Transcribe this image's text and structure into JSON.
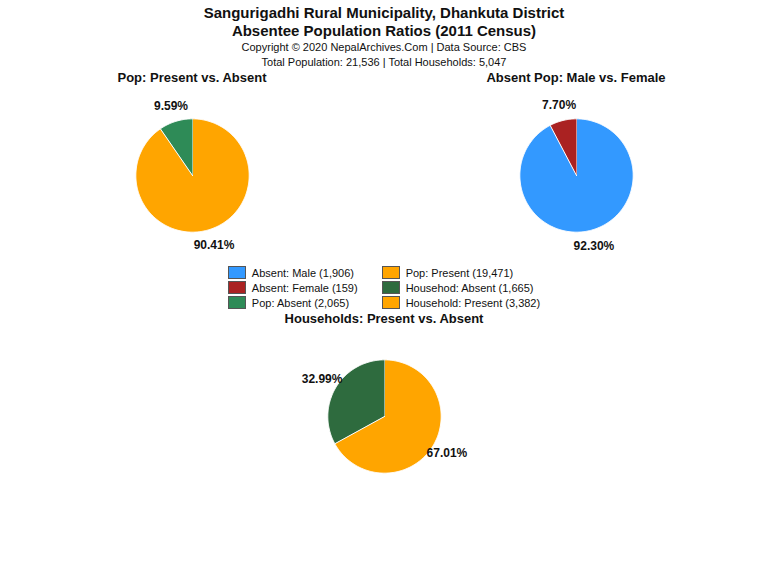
{
  "title": "Sangurigadhi Rural Municipality, Dhankuta District",
  "subtitle": "Absentee Population Ratios (2011 Census)",
  "annotations": [
    "Copyright © 2020 NepalArchives.Com | Data Source: CBS",
    "Total Population: 21,536 | Total Households: 5,047"
  ],
  "series": [
    {
      "name": "Absent: Male (1,906)",
      "color": "#3399FF"
    },
    {
      "name": "Absent: Female (159)",
      "color": "#AA2222"
    },
    {
      "name": "Pop: Absent (2,065)",
      "color": "#2E8B57"
    },
    {
      "name": "Pop: Present (19,471)",
      "color": "#FFA500"
    },
    {
      "name": "Househod: Absent (1,665)",
      "color": "#2E6B3E"
    },
    {
      "name": "Household: Present (3,382)",
      "color": "#FFA500"
    }
  ],
  "chart_data": [
    {
      "type": "pie",
      "title": "Pop: Present vs. Absent",
      "values": [
        90.41,
        9.59
      ],
      "value_labels": [
        "90.41%",
        "9.59%"
      ],
      "colors": [
        "#FFA500",
        "#2E8B57"
      ],
      "data_labels": true
    },
    {
      "type": "pie",
      "title": "Absent Pop: Male vs. Female",
      "values": [
        92.3,
        7.7
      ],
      "value_labels": [
        "92.30%",
        "7.70%"
      ],
      "colors": [
        "#3399FF",
        "#AA2222"
      ],
      "data_labels": true
    },
    {
      "type": "pie",
      "title": "Households: Present vs. Absent",
      "values": [
        67.01,
        32.99
      ],
      "value_labels": [
        "67.01%",
        "32.99%"
      ],
      "colors": [
        "#FFA500",
        "#2E6B3E"
      ],
      "data_labels": true
    }
  ]
}
